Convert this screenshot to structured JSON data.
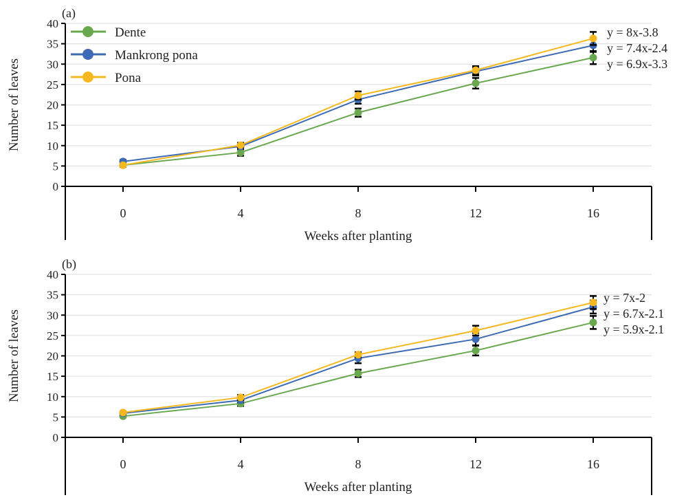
{
  "chart_data": [
    {
      "type": "line",
      "panel_label": "(a)",
      "xlabel": "Weeks after planting",
      "ylabel": "Number of leaves",
      "x": [
        0,
        4,
        8,
        12,
        16
      ],
      "xticks": [
        "0",
        "4",
        "8",
        "12",
        "16"
      ],
      "ylim": [
        0,
        40
      ],
      "yticks": [
        "0",
        "5",
        "10",
        "15",
        "20",
        "25",
        "30",
        "35",
        "40"
      ],
      "grid": true,
      "legend": "top-left",
      "series": [
        {
          "name": "Dente",
          "color": "#6aa84f",
          "values": [
            5.2,
            8.3,
            18.1,
            25.3,
            31.6
          ],
          "error": [
            0.4,
            0.8,
            1.0,
            1.3,
            1.6
          ],
          "equation": "y = 6.9x-3.3"
        },
        {
          "name": "Mankrong pona",
          "color": "#3d6bb3",
          "values": [
            6.1,
            9.8,
            21.3,
            28.2,
            34.6
          ],
          "error": [
            0.4,
            0.6,
            1.0,
            1.0,
            1.6
          ],
          "equation": "y = 7.4x-2.4"
        },
        {
          "name": "Pona",
          "color": "#f5b820",
          "values": [
            5.2,
            10.1,
            22.3,
            28.5,
            36.3
          ],
          "error": [
            0.3,
            0.6,
            1.0,
            1.0,
            1.6
          ],
          "equation": "y = 8x-3.8"
        }
      ]
    },
    {
      "type": "line",
      "panel_label": "(b)",
      "xlabel": "Weeks after planting",
      "ylabel": "Number of leaves",
      "x": [
        0,
        4,
        8,
        12,
        16
      ],
      "xticks": [
        "0",
        "4",
        "8",
        "12",
        "16"
      ],
      "ylim": [
        0,
        40
      ],
      "yticks": [
        "0",
        "5",
        "10",
        "15",
        "20",
        "25",
        "30",
        "35",
        "40"
      ],
      "grid": true,
      "series": [
        {
          "name": "Dente",
          "color": "#6aa84f",
          "values": [
            5.2,
            8.3,
            15.7,
            21.3,
            28.2
          ],
          "error": [
            0.3,
            0.6,
            0.9,
            1.2,
            1.6
          ],
          "equation": "y = 5.9x-2.1"
        },
        {
          "name": "Mankrong pona",
          "color": "#3d6bb3",
          "values": [
            5.9,
            9.1,
            19.4,
            24.1,
            32.0
          ],
          "error": [
            0.3,
            0.5,
            1.2,
            1.5,
            1.6
          ],
          "equation": "y = 6.7x-2.1"
        },
        {
          "name": "Pona",
          "color": "#f5b820",
          "values": [
            6.1,
            9.8,
            20.3,
            26.2,
            33.1
          ],
          "error": [
            0.3,
            0.6,
            0.6,
            1.2,
            1.6
          ],
          "equation": "y = 7x-2"
        }
      ]
    }
  ]
}
